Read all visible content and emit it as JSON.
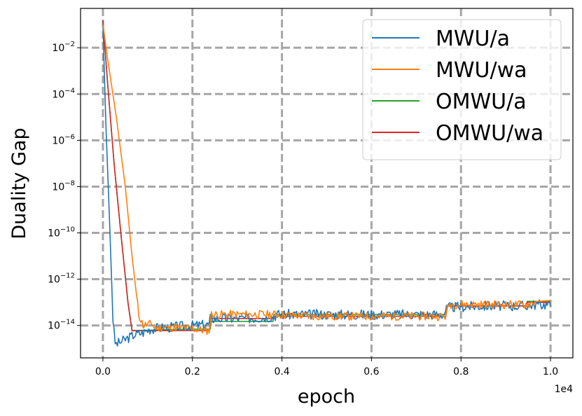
{
  "chart_data": {
    "type": "line",
    "title": "",
    "xlabel": "epoch",
    "ylabel": "Duality Gap",
    "x_offset_label": "1e4",
    "x_scale_factor": 10000,
    "xlim": [
      -500,
      10500
    ],
    "ylim_log10": [
      -15.4,
      -0.3
    ],
    "yscale": "log",
    "grid": true,
    "legend_position": "top-right",
    "x_ticks": [
      {
        "value": 0,
        "label": "0.0"
      },
      {
        "value": 2000,
        "label": "0.2"
      },
      {
        "value": 4000,
        "label": "0.4"
      },
      {
        "value": 6000,
        "label": "0.6"
      },
      {
        "value": 8000,
        "label": "0.8"
      },
      {
        "value": 10000,
        "label": "1.0"
      }
    ],
    "y_ticks": [
      {
        "exp": -2,
        "label": "10",
        "sup": "−2"
      },
      {
        "exp": -4,
        "label": "10",
        "sup": "−4"
      },
      {
        "exp": -6,
        "label": "10",
        "sup": "−6"
      },
      {
        "exp": -8,
        "label": "10",
        "sup": "−8"
      },
      {
        "exp": -10,
        "label": "10",
        "sup": "−10"
      },
      {
        "exp": -12,
        "label": "10",
        "sup": "−12"
      },
      {
        "exp": -14,
        "label": "10",
        "sup": "−14"
      }
    ],
    "series": [
      {
        "name": "MWU/a",
        "color": "#1f77b4",
        "noise": 0.22,
        "seed": 3,
        "points": [
          [
            0,
            0.1
          ],
          [
            60,
            1e-05
          ],
          [
            140,
            1e-09
          ],
          [
            230,
            1e-14
          ],
          [
            280,
            1.5e-15
          ],
          [
            450,
            2.2e-15
          ],
          [
            700,
            4e-15
          ],
          [
            900,
            5e-15
          ],
          [
            1050,
            7e-15
          ],
          [
            1300,
            8e-15
          ],
          [
            1700,
            9e-15
          ],
          [
            2000,
            1e-14
          ],
          [
            2380,
            1.1e-14
          ],
          [
            2400,
            2e-14
          ],
          [
            3150,
            2e-14
          ],
          [
            3200,
            2e-14
          ],
          [
            3800,
            2.4e-14
          ],
          [
            3900,
            3e-14
          ],
          [
            5000,
            3e-14
          ],
          [
            6200,
            3e-14
          ],
          [
            7600,
            3e-14
          ],
          [
            7700,
            6e-14
          ],
          [
            8500,
            7e-14
          ],
          [
            9400,
            7e-14
          ],
          [
            9600,
            8e-14
          ],
          [
            10000,
            8e-14
          ]
        ]
      },
      {
        "name": "MWU/wa",
        "color": "#ff7f0e",
        "noise": 0.18,
        "seed": 11,
        "points": [
          [
            0,
            0.1
          ],
          [
            100,
            0.004
          ],
          [
            300,
            1e-05
          ],
          [
            500,
            1e-08
          ],
          [
            650,
            1e-11
          ],
          [
            800,
            3e-14
          ],
          [
            900,
            1e-14
          ],
          [
            1100,
            1.2e-14
          ],
          [
            1150,
            8e-15
          ],
          [
            1800,
            8e-15
          ],
          [
            2300,
            6e-15
          ],
          [
            2380,
            6e-15
          ],
          [
            2420,
            3e-14
          ],
          [
            3000,
            3e-14
          ],
          [
            3800,
            3e-14
          ],
          [
            4700,
            2.5e-14
          ],
          [
            5500,
            2.5e-14
          ],
          [
            7000,
            2.5e-14
          ],
          [
            7660,
            2.5e-14
          ],
          [
            7720,
            8e-14
          ],
          [
            8500,
            8e-14
          ],
          [
            9500,
            8e-14
          ],
          [
            9700,
            1.1e-13
          ],
          [
            10000,
            1.2e-13
          ]
        ]
      },
      {
        "name": "OMWU/a",
        "color": "#2ca02c",
        "noise": 0,
        "seed": 0,
        "points": [
          [
            0,
            0.15
          ],
          [
            100,
            0.0004
          ],
          [
            250,
            1e-07
          ],
          [
            400,
            1e-10
          ],
          [
            560,
            1e-13
          ],
          [
            650,
            6e-15
          ],
          [
            2000,
            7e-15
          ],
          [
            2400,
            7e-15
          ],
          [
            2420,
            1.5e-14
          ],
          [
            3800,
            1.5e-14
          ],
          [
            3820,
            3e-14
          ],
          [
            7660,
            3e-14
          ],
          [
            7700,
            7e-14
          ],
          [
            9450,
            7e-14
          ],
          [
            9480,
            1.1e-13
          ],
          [
            10000,
            1.1e-13
          ]
        ]
      },
      {
        "name": "OMWU/wa",
        "color": "#d62728",
        "noise": 0,
        "seed": 0,
        "points": [
          [
            0,
            0.15
          ],
          [
            100,
            0.0004
          ],
          [
            250,
            1e-07
          ],
          [
            400,
            1e-10
          ],
          [
            560,
            1e-13
          ],
          [
            650,
            6e-15
          ],
          [
            2000,
            6e-15
          ],
          [
            2380,
            6e-15
          ],
          [
            2400,
            2e-14
          ],
          [
            3800,
            2e-14
          ],
          [
            3820,
            2.5e-14
          ],
          [
            4700,
            2.5e-14
          ],
          [
            7660,
            2.5e-14
          ],
          [
            7700,
            7e-14
          ],
          [
            9450,
            7e-14
          ],
          [
            9480,
            1e-13
          ],
          [
            10000,
            1e-13
          ]
        ]
      }
    ]
  }
}
